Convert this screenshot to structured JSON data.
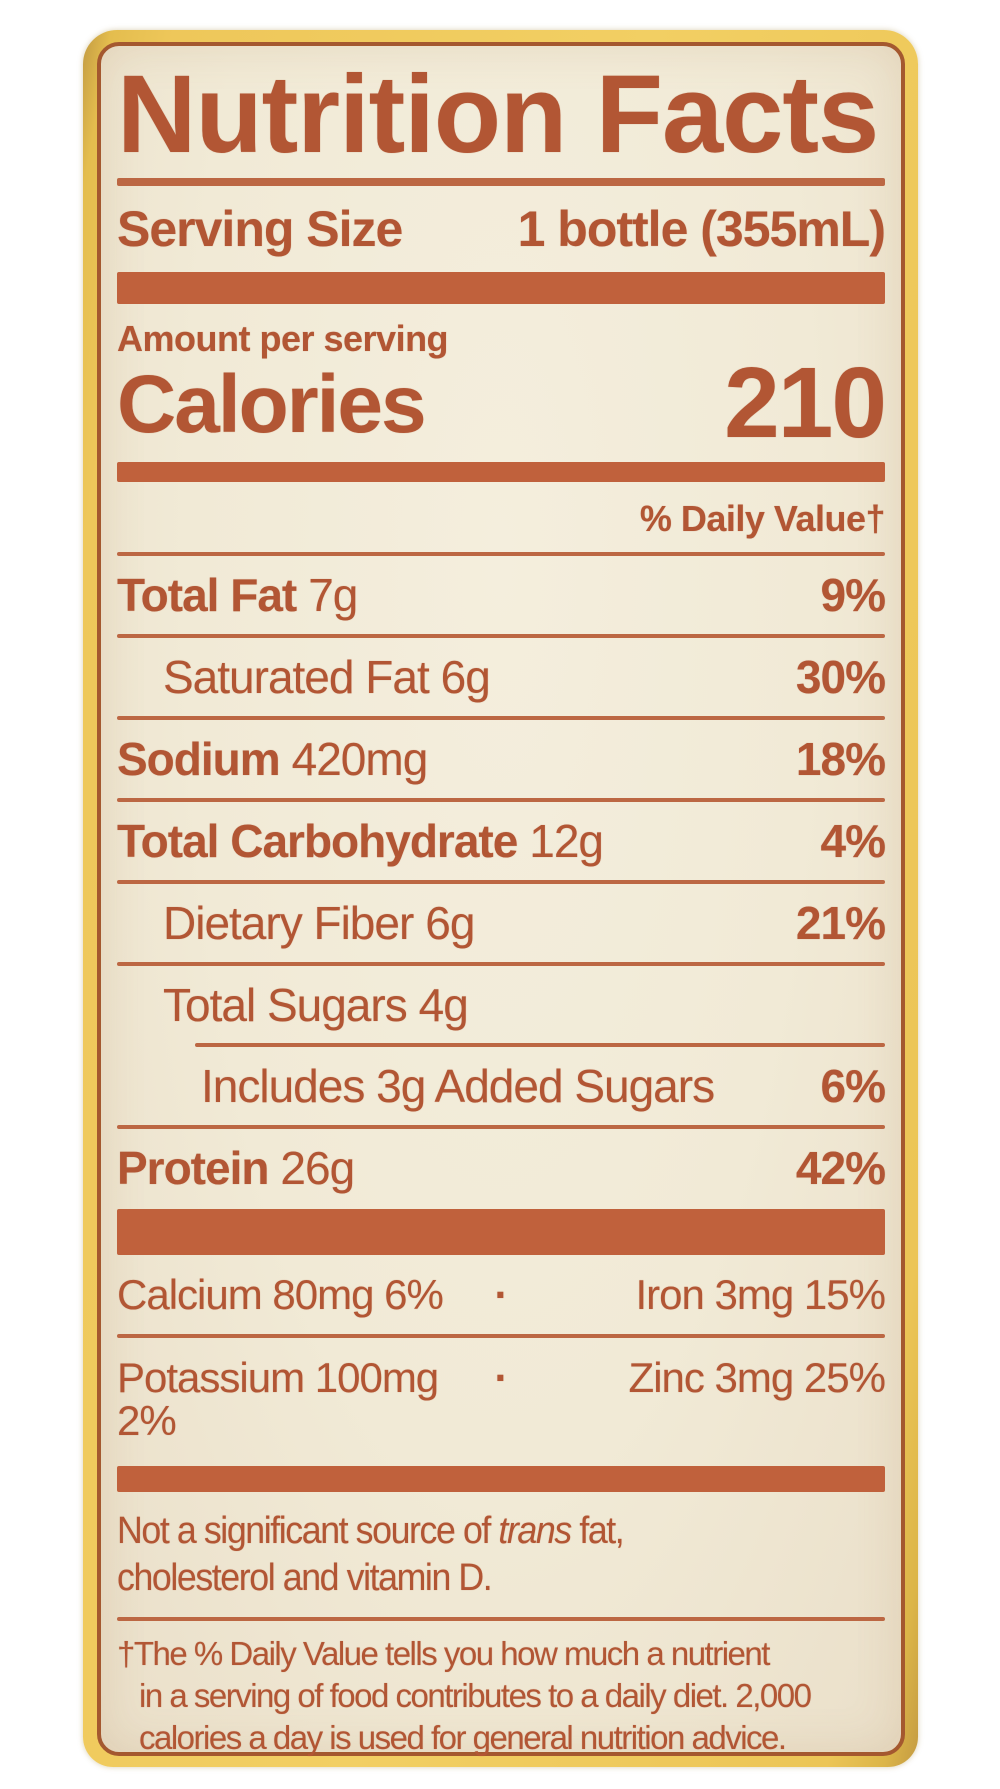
{
  "colors": {
    "ink": "#b25634",
    "bar": "#c0613c",
    "rule": "#bc6743",
    "label_background": "#f1ead6",
    "bottle_yellow": "#ecc455",
    "page_background": "#ffffff"
  },
  "label": {
    "title": "Nutrition Facts",
    "serving_label": "Serving Size",
    "serving_value": "1 bottle (355mL)",
    "amount_per_serving": "Amount per serving",
    "calories_label": "Calories",
    "calories_value": "210",
    "daily_value_header": "% Daily Value†",
    "rows": [
      {
        "name": "Total Fat",
        "amount": "7g",
        "pct": "9%"
      },
      {
        "name": "Saturated Fat",
        "amount": "6g",
        "pct": "30%"
      },
      {
        "name": "Sodium",
        "amount": "420mg",
        "pct": "18%"
      },
      {
        "name": "Total Carbohydrate",
        "amount": "12g",
        "pct": "4%"
      },
      {
        "name": "Dietary Fiber",
        "amount": "6g",
        "pct": "21%"
      },
      {
        "name": "Total Sugars",
        "amount": "4g",
        "pct": ""
      },
      {
        "name": "Includes 3g Added Sugars",
        "amount": "",
        "pct": "6%"
      },
      {
        "name": "Protein",
        "amount": "26g",
        "pct": "42%"
      }
    ],
    "minerals": {
      "separator": "·",
      "rows": [
        {
          "left": "Calcium 80mg 6%",
          "right": "Iron 3mg 15%"
        },
        {
          "left": "Potassium 100mg 2%",
          "right": "Zinc 3mg 25%"
        }
      ]
    },
    "not_significant": {
      "line1_prefix": "Not a significant source of ",
      "line1_italic": "trans",
      "line1_suffix": " fat,",
      "line2": "cholesterol and vitamin D."
    },
    "footnote_lines": [
      "†The % Daily Value tells you how much a nutrient",
      "in a serving of food contributes to a daily diet. 2,000",
      "calories a day is used for general nutrition advice."
    ]
  }
}
